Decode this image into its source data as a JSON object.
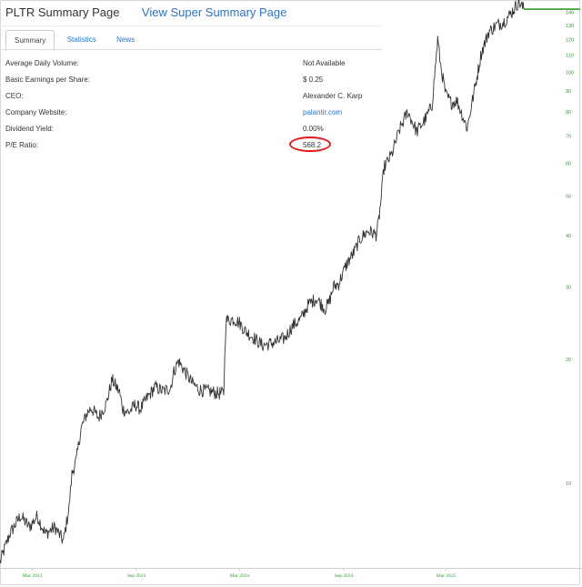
{
  "header": {
    "title": "PLTR Summary Page",
    "super_link": "View Super Summary Page"
  },
  "tabs": [
    {
      "label": "Summary",
      "active": true
    },
    {
      "label": "Statistics",
      "active": false
    },
    {
      "label": "News",
      "active": false
    }
  ],
  "summary": [
    {
      "label": "Average Daily Volume:",
      "value": "Not Available"
    },
    {
      "label": "Basic Earnings per Share:",
      "value": "$ 0.25"
    },
    {
      "label": "CEO:",
      "value": "Alexander C. Karp"
    },
    {
      "label": "Company Website:",
      "value": "palantir.com",
      "link": true
    },
    {
      "label": "Dividend Yield:",
      "value": "0.00%"
    },
    {
      "label": "P/E Ratio:",
      "value": "568.2",
      "highlighted": true
    }
  ],
  "colors": {
    "link": "#2a74c6",
    "axis": "#2e9a2e",
    "price": "#333333",
    "highlight": "#e01818"
  },
  "chart_data": {
    "type": "line",
    "y_scale": "log",
    "ylim": [
      6.3,
      148
    ],
    "y_ticks": [
      10,
      20,
      30,
      40,
      50,
      60,
      70,
      80,
      90,
      100,
      110,
      120,
      130,
      140
    ],
    "x_ticks": [
      "Mar 2023",
      "Sep 2023",
      "Mar 2024",
      "Sep 2024",
      "Mar 2025"
    ],
    "last_price": 142,
    "series": [
      {
        "x": [
          "2023-01-03",
          "2023-01-20",
          "2023-02-08",
          "2023-02-24",
          "2023-03-10",
          "2023-03-24",
          "2023-04-10",
          "2023-04-25",
          "2023-05-05",
          "2023-05-10",
          "2023-05-18",
          "2023-05-26",
          "2023-06-06",
          "2023-06-13",
          "2023-06-26",
          "2023-07-10",
          "2023-07-20",
          "2023-08-02",
          "2023-08-08",
          "2023-08-18",
          "2023-08-30",
          "2023-09-08",
          "2023-09-20",
          "2023-10-04",
          "2023-10-18",
          "2023-10-31",
          "2023-11-06",
          "2023-11-14",
          "2023-11-24",
          "2023-12-08",
          "2023-12-22",
          "2024-01-08",
          "2024-01-22",
          "2024-02-02",
          "2024-02-06",
          "2024-02-20",
          "2024-03-01",
          "2024-03-11",
          "2024-03-25",
          "2024-04-10",
          "2024-04-24",
          "2024-05-06",
          "2024-05-20",
          "2024-06-03",
          "2024-06-17",
          "2024-07-01",
          "2024-07-15",
          "2024-07-30",
          "2024-08-06",
          "2024-08-14",
          "2024-08-23",
          "2024-09-06",
          "2024-09-20",
          "2024-09-25",
          "2024-10-02",
          "2024-10-14",
          "2024-10-28",
          "2024-11-01",
          "2024-11-05",
          "2024-11-11",
          "2024-11-25",
          "2024-12-09",
          "2024-12-23",
          "2025-01-08",
          "2025-01-24",
          "2025-02-04",
          "2025-02-14",
          "2025-02-19",
          "2025-02-28",
          "2025-03-10",
          "2025-03-20",
          "2025-04-07",
          "2025-04-21",
          "2025-05-02",
          "2025-05-15",
          "2025-05-29",
          "2025-06-10",
          "2025-06-24",
          "2025-07-07",
          "2025-07-16"
        ],
        "y": [
          6.4,
          7.5,
          8.3,
          7.8,
          8.3,
          7.5,
          7.8,
          7.2,
          8.7,
          10.5,
          11.4,
          13.5,
          14.8,
          15.2,
          14.4,
          15.6,
          17.8,
          16.6,
          15.1,
          14.8,
          15.5,
          15.1,
          16.1,
          17.1,
          16.7,
          17.0,
          18.6,
          19.8,
          18.8,
          17.5,
          16.8,
          16.7,
          16.5,
          16.5,
          24.8,
          25.0,
          24.5,
          23.4,
          22.6,
          21.6,
          21.8,
          22.0,
          22.5,
          24.1,
          25.0,
          27.2,
          28.1,
          26.5,
          27.4,
          30.0,
          30.5,
          34.0,
          36.5,
          38.0,
          39.5,
          41.0,
          40.2,
          42.5,
          47.5,
          58.4,
          63.0,
          72.5,
          80.0,
          71.5,
          77.0,
          83.0,
          120.0,
          104.0,
          88.0,
          84.0,
          85.0,
          73.0,
          92.0,
          111.0,
          125.0,
          130.0,
          132.0,
          139.0,
          148.0,
          142.0
        ]
      }
    ]
  }
}
